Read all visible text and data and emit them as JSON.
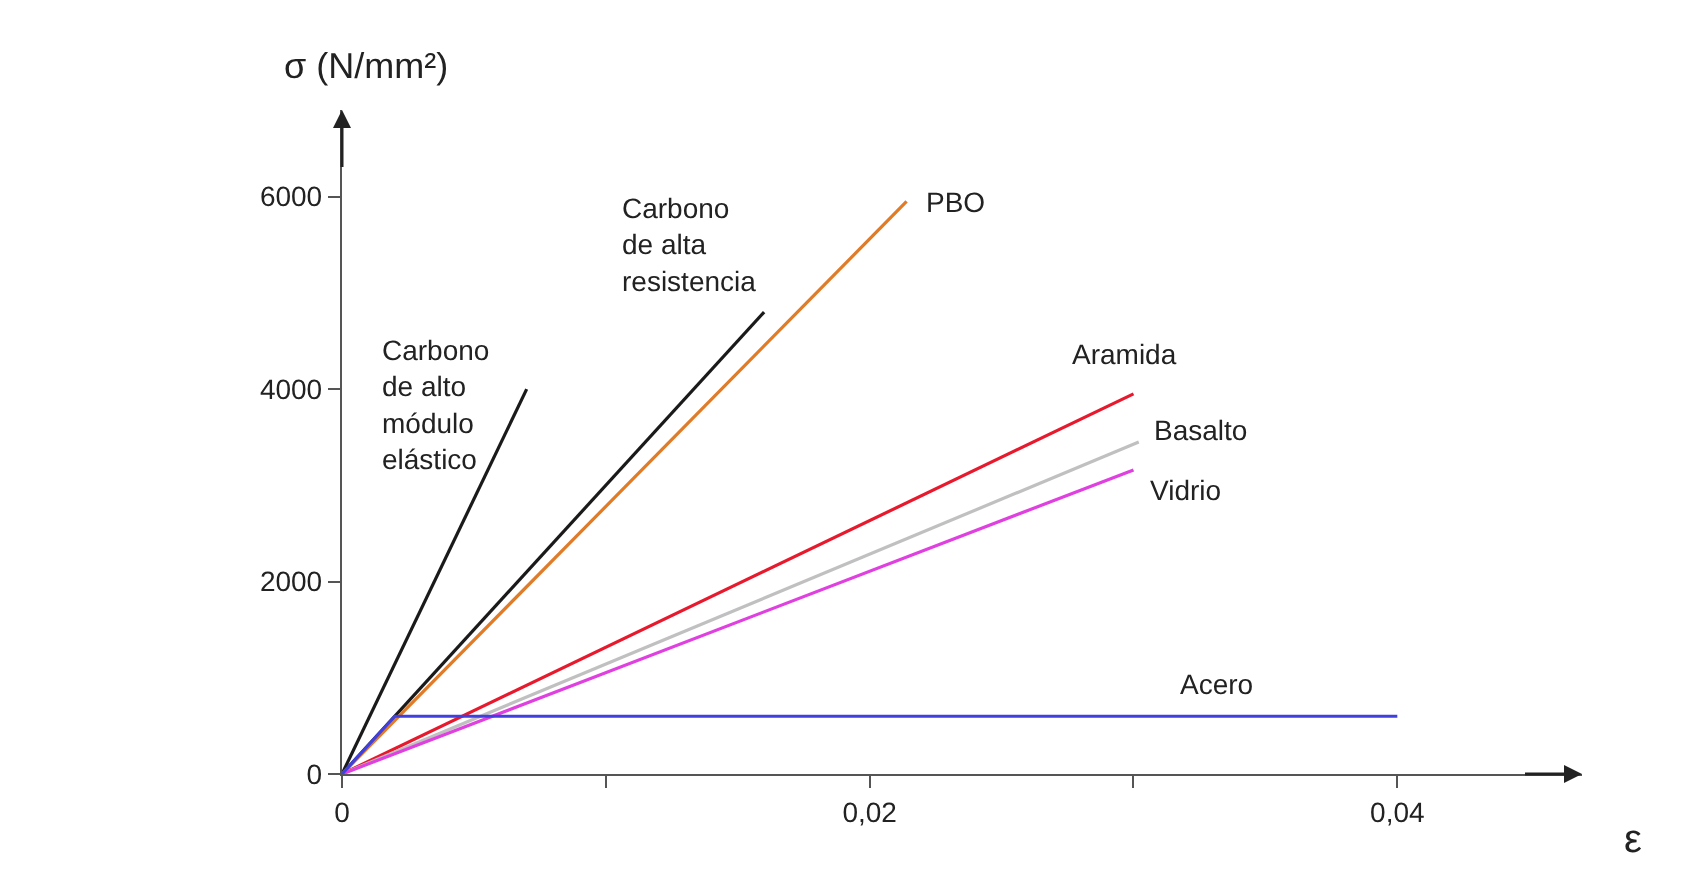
{
  "chart_data": {
    "type": "line",
    "xlabel": "ε",
    "ylabel": "σ (N/mm²)",
    "xlim": [
      0,
      0.047
    ],
    "ylim": [
      0,
      6900
    ],
    "xticks": [
      0,
      {
        "value": 0.01,
        "label": null
      },
      {
        "value": 0.02,
        "label": "0,02"
      },
      {
        "value": 0.03,
        "label": null
      },
      {
        "value": 0.04,
        "label": "0,04"
      }
    ],
    "yticks": [
      0,
      2000,
      4000,
      6000
    ],
    "legend": false,
    "marker": "none",
    "line_style": "solid",
    "series": [
      {
        "name": "Carbono de alto módulo elástico",
        "color": "#1a1a1a",
        "x": [
          0,
          0.007
        ],
        "values": [
          0,
          4000
        ]
      },
      {
        "name": "Carbono de alta resistencia",
        "color": "#1a1a1a",
        "x": [
          0,
          0.016
        ],
        "values": [
          0,
          4800
        ]
      },
      {
        "name": "PBO",
        "color": "#e07b28",
        "x": [
          0,
          0.0214
        ],
        "values": [
          0,
          5950
        ]
      },
      {
        "name": "Aramida",
        "color": "#e8192c",
        "x": [
          0,
          0.03
        ],
        "values": [
          0,
          3950
        ]
      },
      {
        "name": "Basalto",
        "color": "#c0c0c0",
        "x": [
          0,
          0.0302
        ],
        "values": [
          0,
          3450
        ]
      },
      {
        "name": "Vidrio",
        "color": "#e040e0",
        "x": [
          0,
          0.03
        ],
        "values": [
          0,
          3160
        ]
      },
      {
        "name": "Acero",
        "color": "#4040e0",
        "x": [
          0,
          0.002,
          0.04
        ],
        "values": [
          0,
          600,
          600
        ]
      }
    ]
  }
}
